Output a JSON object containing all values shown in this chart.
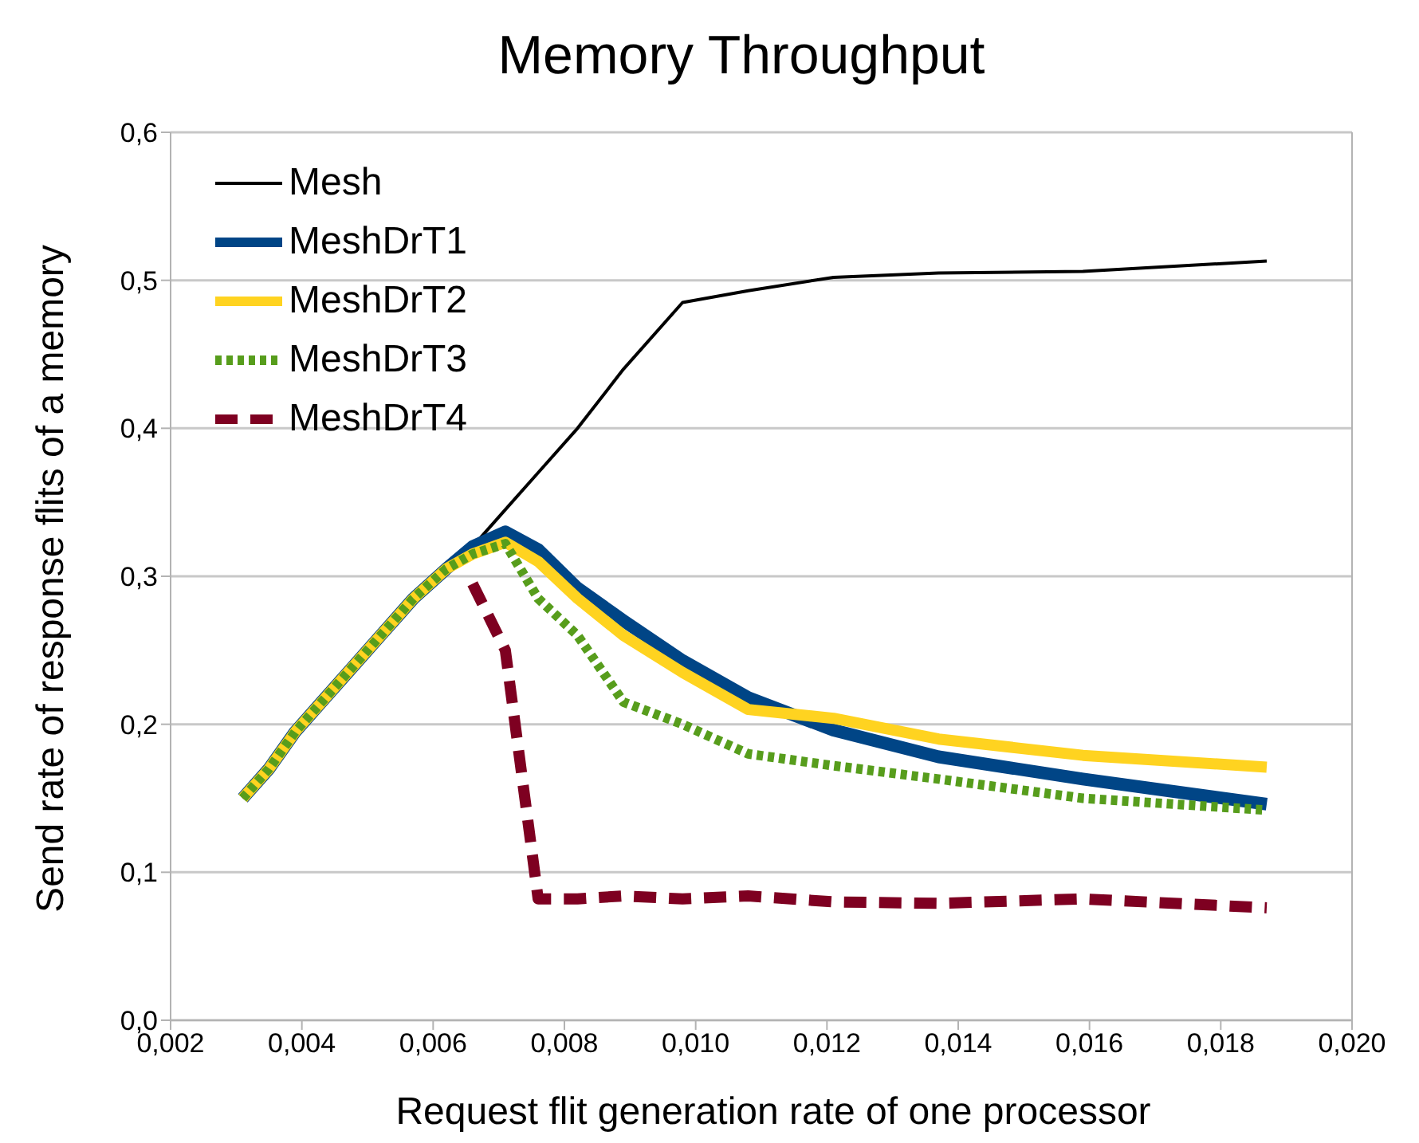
{
  "chart_data": {
    "type": "line",
    "title": "Memory Throughput",
    "xlabel": "Request flit generation rate of one processor",
    "ylabel": "Send rate of response flits of  a memory",
    "x": [
      0.0031,
      0.0035,
      0.0039,
      0.0043,
      0.0047,
      0.0052,
      0.0057,
      0.0062,
      0.0066,
      0.0071,
      0.0076,
      0.0082,
      0.0089,
      0.0098,
      0.0108,
      0.0121,
      0.0137,
      0.0159,
      0.0187
    ],
    "series": [
      {
        "name": "Mesh",
        "color": "#000000",
        "line_style": "solid",
        "values": [
          0.15,
          0.17,
          0.195,
          0.215,
          0.235,
          0.26,
          0.285,
          0.305,
          0.32,
          0.345,
          0.37,
          0.4,
          0.44,
          0.485,
          0.493,
          0.502,
          0.505,
          0.506,
          0.513
        ]
      },
      {
        "name": "MeshDrT1",
        "color": "#004586",
        "line_style": "solid",
        "values": [
          0.15,
          0.17,
          0.195,
          0.215,
          0.235,
          0.26,
          0.285,
          0.305,
          0.32,
          0.33,
          0.318,
          0.292,
          0.27,
          0.243,
          0.218,
          0.196,
          0.178,
          0.163,
          0.146
        ]
      },
      {
        "name": "MeshDrT2",
        "color": "#ffd320",
        "line_style": "solid",
        "values": [
          0.15,
          0.17,
          0.195,
          0.215,
          0.235,
          0.26,
          0.285,
          0.305,
          0.315,
          0.323,
          0.31,
          0.285,
          0.26,
          0.235,
          0.21,
          0.204,
          0.19,
          0.179,
          0.171
        ]
      },
      {
        "name": "MeshDrT3",
        "color": "#579d1c",
        "line_style": "dotted",
        "values": [
          0.15,
          0.17,
          0.195,
          0.215,
          0.235,
          0.26,
          0.285,
          0.305,
          0.315,
          0.322,
          0.285,
          0.26,
          0.215,
          0.2,
          0.18,
          0.172,
          0.163,
          0.15,
          0.142
        ]
      },
      {
        "name": "MeshDrT4",
        "color": "#7e0021",
        "line_style": "dashed",
        "values": [
          null,
          null,
          null,
          null,
          null,
          null,
          null,
          null,
          0.295,
          0.25,
          0.082,
          0.082,
          0.084,
          0.082,
          0.084,
          0.08,
          0.079,
          0.082,
          0.076
        ]
      }
    ],
    "xlim": [
      0.002,
      0.02
    ],
    "xticks": [
      {
        "value": 0.002,
        "label": "0,002"
      },
      {
        "value": 0.004,
        "label": "0,004"
      },
      {
        "value": 0.006,
        "label": "0,006"
      },
      {
        "value": 0.008,
        "label": "0,008"
      },
      {
        "value": 0.01,
        "label": "0,010"
      },
      {
        "value": 0.012,
        "label": "0,012"
      },
      {
        "value": 0.014,
        "label": "0,014"
      },
      {
        "value": 0.016,
        "label": "0,016"
      },
      {
        "value": 0.018,
        "label": "0,018"
      },
      {
        "value": 0.02,
        "label": "0,020"
      }
    ],
    "ylim": [
      0,
      0.6
    ],
    "yticks": [
      {
        "value": 0,
        "label": "0,0"
      },
      {
        "value": 0.1,
        "label": "0,1"
      },
      {
        "value": 0.2,
        "label": "0,2"
      },
      {
        "value": 0.3,
        "label": "0,3"
      },
      {
        "value": 0.4,
        "label": "0,4"
      },
      {
        "value": 0.5,
        "label": "0,5"
      },
      {
        "value": 0.6,
        "label": "0,6"
      }
    ],
    "grid": "y",
    "legend": "top left"
  }
}
